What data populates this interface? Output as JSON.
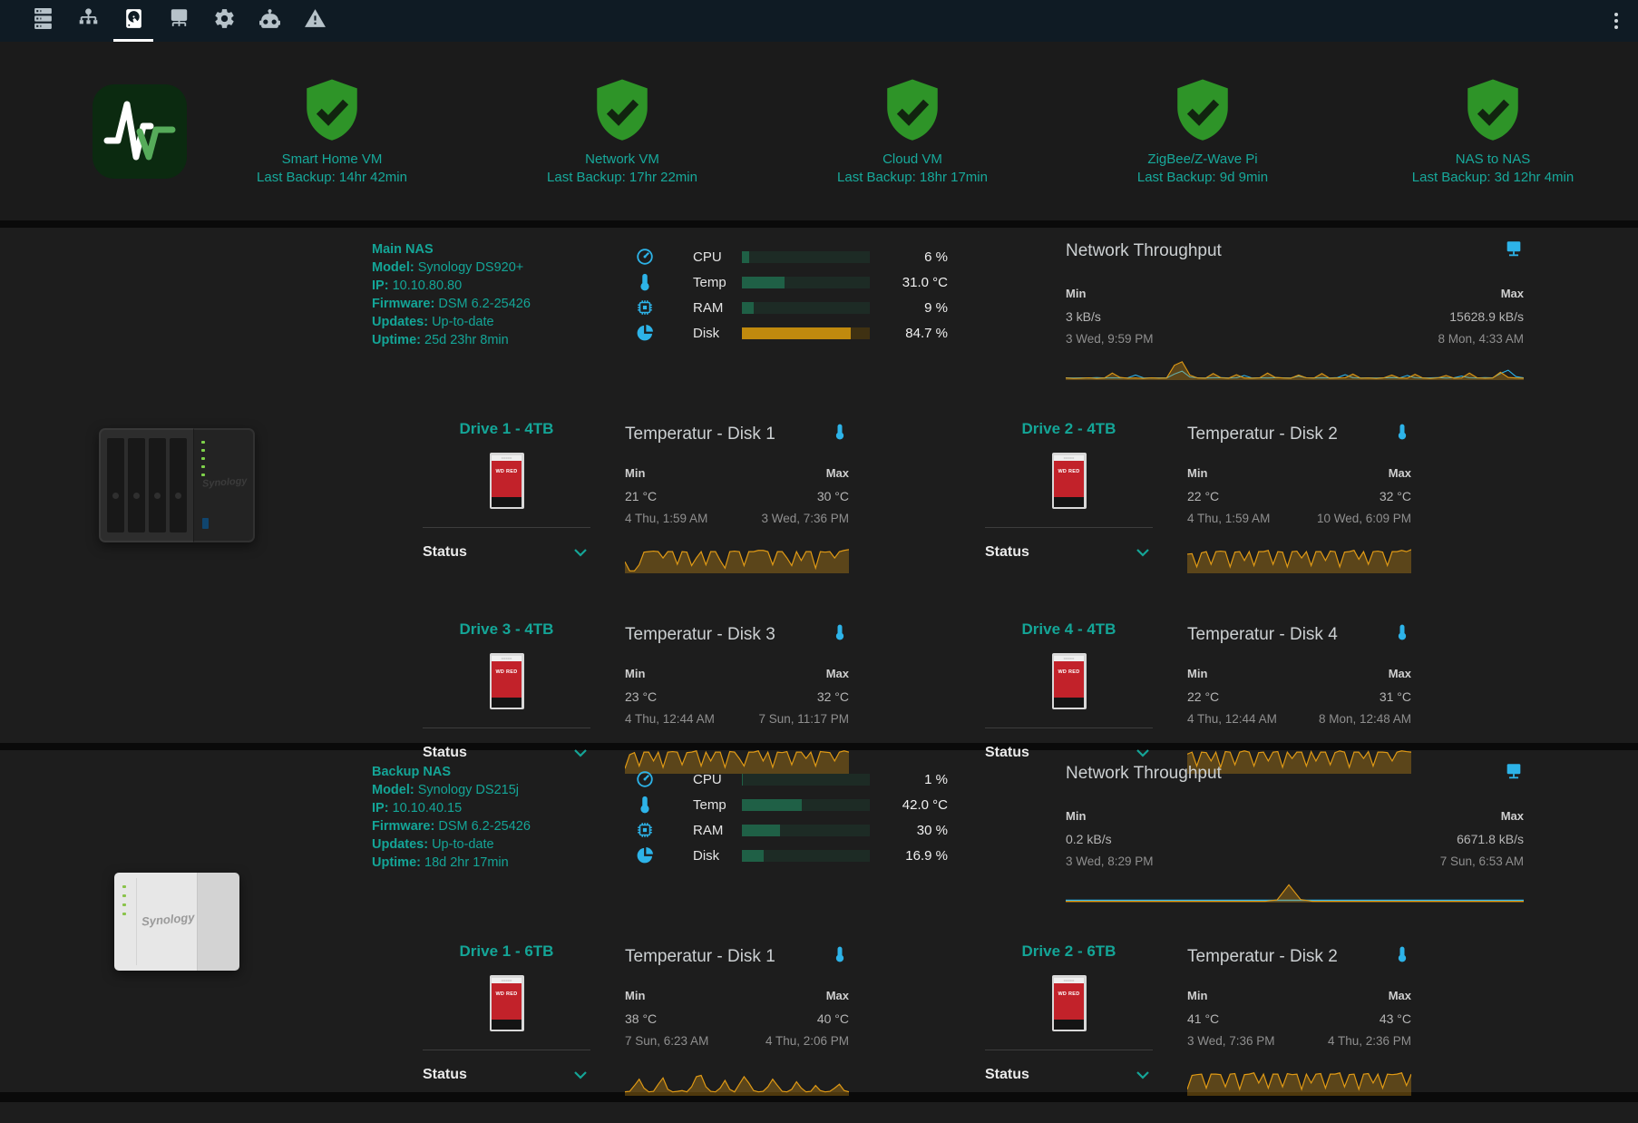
{
  "toolbar": {
    "icons": [
      "server-icon",
      "network-tree-icon",
      "harddisk-icon",
      "ip-network-icon",
      "settings-gear-icon",
      "robot-icon",
      "alert-triangle-icon"
    ],
    "active_tab": "harddisk",
    "menu_icon": "kebab-menu-icon",
    "ip_icon_text": "IP"
  },
  "colors": {
    "teal_accent": "#14a597",
    "icon_blue": "#2db3e8",
    "shield_green": "#2e9428",
    "spark_orange": "#e09a15",
    "gauge_green": "#1f6046",
    "gauge_orange": "#c08a0e"
  },
  "backup_row": {
    "app_icon": "pulse-monitor-logo",
    "items": [
      {
        "label": "Smart Home VM",
        "last_backup": "Last Backup: 14hr 42min"
      },
      {
        "label": "Network VM",
        "last_backup": "Last Backup: 17hr 22min"
      },
      {
        "label": "Cloud VM",
        "last_backup": "Last Backup: 18hr 17min"
      },
      {
        "label": "ZigBee/Z-Wave Pi",
        "last_backup": "Last Backup: 9d 9min"
      },
      {
        "label": "NAS to NAS",
        "last_backup": "Last Backup: 3d 12hr 4min"
      }
    ]
  },
  "labels": {
    "min": "Min",
    "max": "Max",
    "status": "Status",
    "network_title": "Network Throughput",
    "model": "Model:",
    "ip": "IP:",
    "firmware": "Firmware:",
    "updates": "Updates:",
    "uptime": "Uptime:",
    "hdd_label": "WD RED"
  },
  "nas": [
    {
      "name": "Main NAS",
      "model": "Synology DS920+",
      "ip": "10.10.80.80",
      "firmware": "DSM 6.2-25426",
      "updates": "Up-to-date",
      "uptime": "25d 23hr 8min",
      "device": "synology-4bay-black",
      "gauges": [
        {
          "label": "CPU",
          "value": "6 %",
          "pct": 6,
          "fill": "#1f6046",
          "track": "#1d2b25"
        },
        {
          "label": "Temp",
          "value": "31.0 °C",
          "pct": 33,
          "fill": "#1f6046",
          "track": "#1d2b25"
        },
        {
          "label": "RAM",
          "value": "9 %",
          "pct": 9,
          "fill": "#1f6046",
          "track": "#1d2b25"
        },
        {
          "label": "Disk",
          "value": "84.7 %",
          "pct": 85,
          "fill": "#c08a0e",
          "track": "#3f3112"
        }
      ],
      "network": {
        "min_value": "3 kB/s",
        "min_time": "3 Wed, 9:59 PM",
        "max_value": "15628.9 kB/s",
        "max_time": "8 Mon, 4:33 AM",
        "series": [
          {
            "color": "#2db3e8",
            "width": 1.1,
            "fill": false,
            "points": [
              6,
              5,
              6,
              5,
              7,
              5,
              6,
              5,
              6,
              20,
              6,
              5,
              6,
              5,
              25,
              40,
              10,
              6,
              5,
              6,
              7,
              5,
              6,
              18,
              5,
              6,
              5,
              7,
              6,
              5,
              15,
              6,
              5,
              6,
              5,
              7,
              22,
              6,
              5,
              6,
              5,
              6,
              7,
              5,
              18,
              6,
              5,
              6,
              7,
              5,
              6,
              15,
              6,
              5,
              7,
              6,
              28,
              45,
              12,
              6
            ]
          },
          {
            "color": "#e09a15",
            "width": 1.1,
            "fill": true,
            "points": [
              5,
              3,
              4,
              6,
              3,
              5,
              30,
              8,
              4,
              5,
              3,
              6,
              4,
              5,
              70,
              88,
              20,
              5,
              4,
              28,
              6,
              4,
              22,
              5,
              4,
              6,
              30,
              8,
              5,
              4,
              20,
              6,
              5,
              28,
              4,
              5,
              6,
              25,
              4,
              5,
              3,
              6,
              20,
              5,
              4,
              24,
              5,
              3,
              6,
              18,
              4,
              5,
              30,
              6,
              4,
              5,
              35,
              8,
              5,
              4
            ]
          }
        ]
      },
      "drives": [
        {
          "title": "Drive 1 - 4TB",
          "temp_title": "Temperatur - Disk 1",
          "min_value": "21 °C",
          "min_time": "4 Thu, 1:59 AM",
          "max_value": "30 °C",
          "max_time": "3 Wed, 7:36 PM",
          "series": [
            {
              "color": "#e09a15",
              "width": 1.2,
              "fill": true,
              "points": [
                40,
                4,
                4,
                28,
                78,
                80,
                82,
                80,
                55,
                80,
                80,
                30,
                80,
                78,
                25,
                55,
                80,
                28,
                80,
                80,
                45,
                15,
                80,
                82,
                80,
                25,
                80,
                80,
                85,
                85,
                80,
                28,
                80,
                80,
                55,
                25,
                80,
                45,
                80,
                80,
                15,
                80,
                78,
                80,
                55,
                80,
                85,
                88
              ]
            }
          ]
        },
        {
          "title": "Drive 2 - 4TB",
          "temp_title": "Temperatur - Disk 2",
          "min_value": "22 °C",
          "min_time": "4 Thu, 1:59 AM",
          "max_value": "32 °C",
          "max_time": "10 Wed, 6:09 PM",
          "series": [
            {
              "color": "#e09a15",
              "width": 1.2,
              "fill": true,
              "points": [
                70,
                72,
                20,
                75,
                80,
                30,
                80,
                82,
                80,
                20,
                78,
                80,
                45,
                80,
                25,
                80,
                80,
                85,
                30,
                80,
                78,
                20,
                80,
                82,
                55,
                80,
                25,
                80,
                80,
                45,
                82,
                80,
                20,
                78,
                80,
                85,
                50,
                80,
                30,
                80,
                82,
                78,
                25,
                80,
                80,
                85,
                80,
                88
              ]
            }
          ]
        },
        {
          "title": "Drive 3 - 4TB",
          "temp_title": "Temperatur - Disk 3",
          "min_value": "23 °C",
          "min_time": "4 Thu, 12:44 AM",
          "max_value": "32 °C",
          "max_time": "7 Sun, 11:17 PM",
          "series": [
            {
              "color": "#e09a15",
              "width": 1.2,
              "fill": true,
              "points": [
                15,
                70,
                78,
                25,
                80,
                80,
                45,
                80,
                20,
                80,
                82,
                80,
                30,
                78,
                80,
                85,
                25,
                80,
                45,
                80,
                80,
                20,
                82,
                80,
                55,
                25,
                80,
                80,
                85,
                45,
                80,
                20,
                80,
                78,
                82,
                30,
                80,
                80,
                55,
                80,
                25,
                82,
                80,
                78,
                45,
                80,
                85,
                80
              ]
            }
          ]
        },
        {
          "title": "Drive 4 - 4TB",
          "temp_title": "Temperatur - Disk 4",
          "min_value": "22 °C",
          "min_time": "4 Thu, 12:44 AM",
          "max_value": "31 °C",
          "max_time": "8 Mon, 12:48 AM",
          "series": [
            {
              "color": "#e09a15",
              "width": 1.2,
              "fill": true,
              "points": [
                72,
                80,
                25,
                80,
                78,
                45,
                80,
                20,
                82,
                80,
                30,
                80,
                85,
                80,
                25,
                78,
                80,
                45,
                80,
                82,
                20,
                80,
                55,
                80,
                80,
                25,
                82,
                45,
                80,
                80,
                30,
                78,
                85,
                80,
                20,
                80,
                80,
                55,
                82,
                25,
                80,
                80,
                78,
                45,
                80,
                85,
                82,
                80
              ]
            }
          ]
        }
      ]
    },
    {
      "name": "Backup NAS",
      "model": "Synology DS215j",
      "ip": "10.10.40.15",
      "firmware": "DSM 6.2-25426",
      "updates": "Up-to-date",
      "uptime": "18d 2hr 17min",
      "device": "synology-2bay-white",
      "gauges": [
        {
          "label": "CPU",
          "value": "1 %",
          "pct": 1,
          "fill": "#1f6046",
          "track": "#1d2b25"
        },
        {
          "label": "Temp",
          "value": "42.0 °C",
          "pct": 47,
          "fill": "#1f6046",
          "track": "#1d2b25"
        },
        {
          "label": "RAM",
          "value": "30 %",
          "pct": 30,
          "fill": "#1f6046",
          "track": "#1d2b25"
        },
        {
          "label": "Disk",
          "value": "16.9 %",
          "pct": 17,
          "fill": "#1f6046",
          "track": "#1d2b25"
        }
      ],
      "network": {
        "min_value": "0.2 kB/s",
        "min_time": "3 Wed, 8:29 PM",
        "max_value": "6671.8 kB/s",
        "max_time": "7 Sun, 6:53 AM",
        "series": [
          {
            "color": "#2db3e8",
            "width": 1.4,
            "fill": false,
            "points": [
              6,
              6,
              6,
              6,
              6,
              6,
              6,
              6,
              6,
              6,
              6,
              6,
              6,
              6,
              6,
              6,
              6,
              6,
              6,
              6
            ]
          },
          {
            "color": "#e09a15",
            "width": 1.1,
            "fill": true,
            "points": [
              1,
              1,
              1,
              1,
              1,
              1,
              1,
              1,
              1,
              1,
              1,
              1,
              1,
              1,
              1,
              1,
              1,
              1,
              8,
              85,
              10,
              1,
              1,
              1,
              1,
              1,
              1,
              1,
              1,
              1,
              1,
              1,
              1,
              1,
              1,
              1,
              1,
              1,
              1,
              1
            ]
          }
        ]
      },
      "drives": [
        {
          "title": "Drive 1 - 6TB",
          "temp_title": "Temperatur - Disk 1",
          "min_value": "38 °C",
          "min_time": "7 Sun, 6:23 AM",
          "max_value": "40 °C",
          "max_time": "4 Thu, 2:06 PM",
          "series": [
            {
              "color": "#e09a15",
              "width": 1.2,
              "fill": true,
              "points": [
                10,
                12,
                35,
                60,
                25,
                10,
                12,
                40,
                65,
                20,
                10,
                12,
                15,
                10,
                30,
                70,
                75,
                30,
                12,
                10,
                25,
                55,
                20,
                10,
                40,
                70,
                45,
                15,
                10,
                12,
                30,
                60,
                35,
                12,
                10,
                20,
                50,
                25,
                10,
                12,
                35,
                15,
                10,
                12,
                25,
                40,
                15,
                10
              ]
            }
          ]
        },
        {
          "title": "Drive 2 - 6TB",
          "temp_title": "Temperatur - Disk 2",
          "min_value": "41 °C",
          "min_time": "3 Wed, 7:36 PM",
          "max_value": "43 °C",
          "max_time": "4 Thu, 2:36 PM",
          "series": [
            {
              "color": "#e09a15",
              "width": 1.2,
              "fill": true,
              "points": [
                20,
                75,
                78,
                80,
                25,
                80,
                80,
                78,
                30,
                80,
                82,
                20,
                78,
                80,
                85,
                45,
                80,
                25,
                80,
                80,
                30,
                82,
                78,
                80,
                20,
                80,
                45,
                80,
                82,
                25,
                80,
                80,
                85,
                30,
                78,
                80,
                20,
                80,
                82,
                45,
                80,
                25,
                80,
                78,
                80,
                85,
                35,
                80
              ]
            }
          ]
        }
      ]
    }
  ]
}
